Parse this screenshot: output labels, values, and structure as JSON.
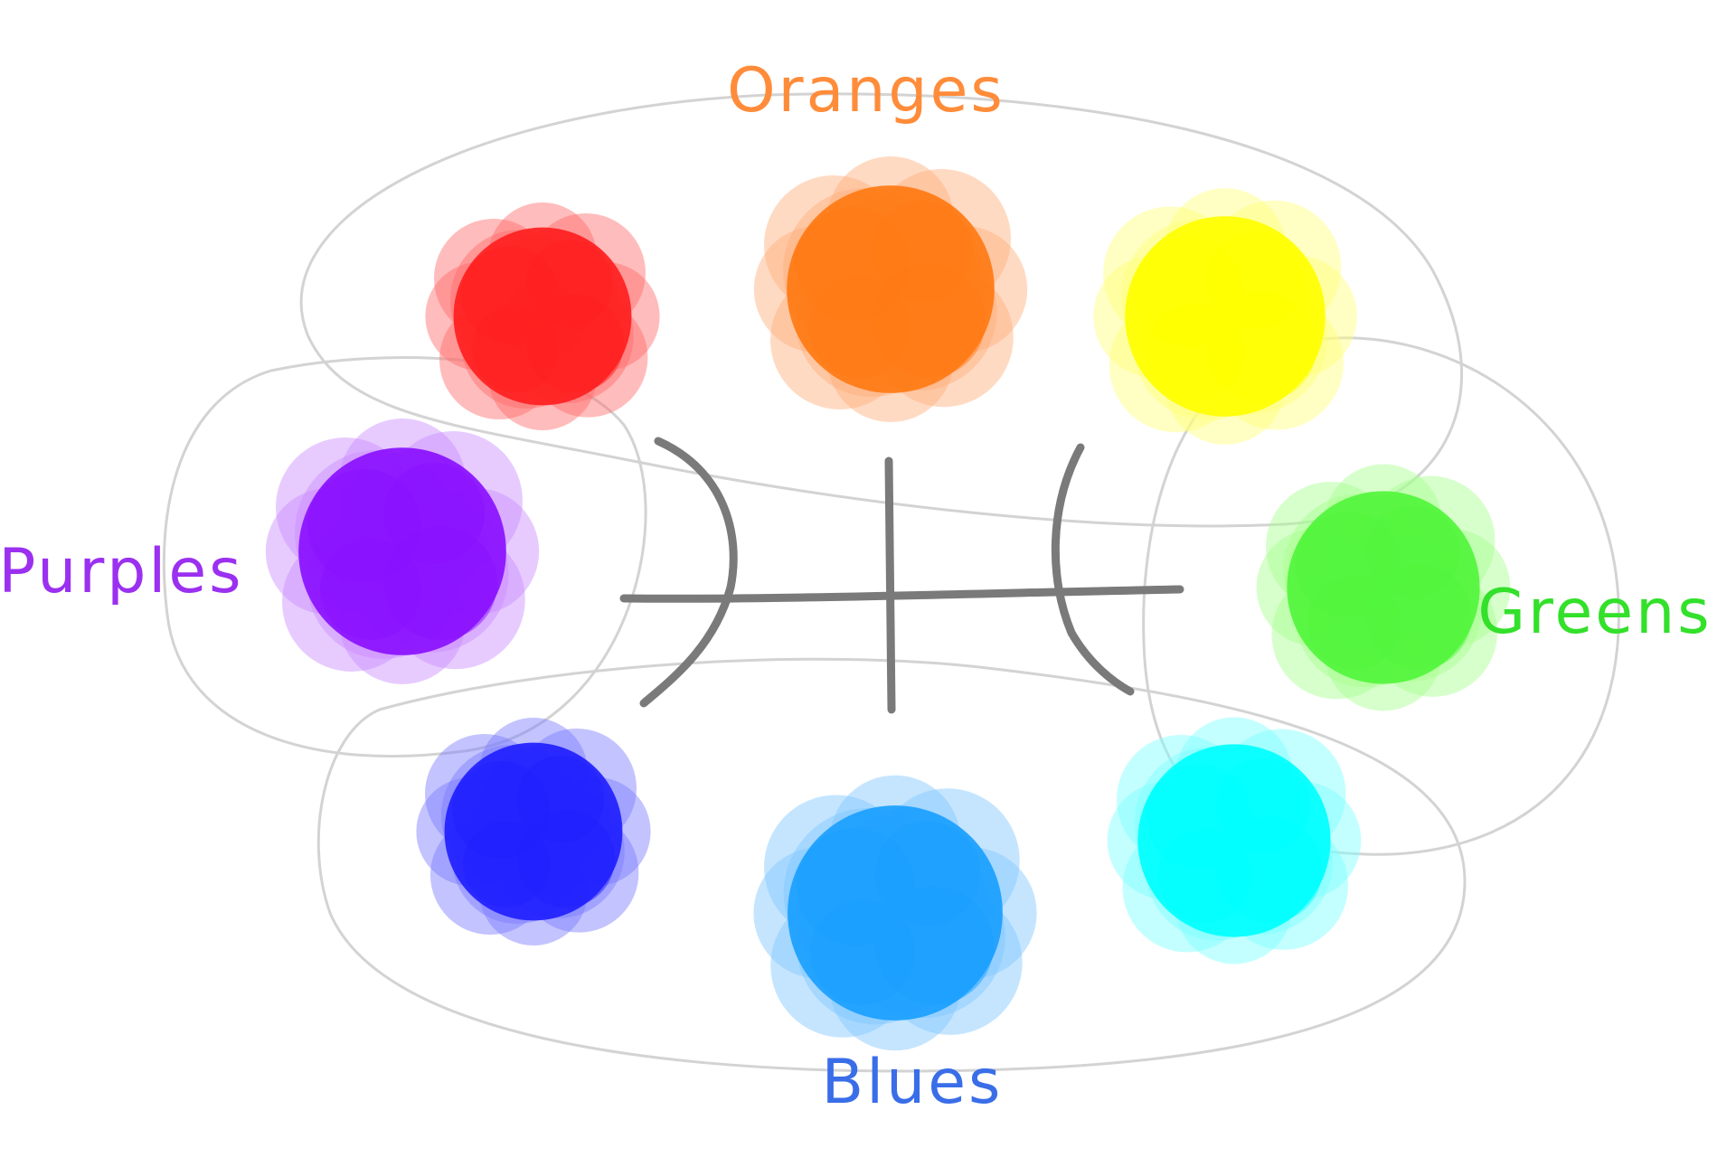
{
  "labels": {
    "oranges": "Oranges",
    "purples": "Purples",
    "greens": "Greens",
    "blues": "Blues"
  },
  "colors": {
    "background": "#ffffff",
    "outline": "#d3d3d3",
    "symbol": "#7a7a7a",
    "label_oranges": "#ff8c3a",
    "label_purples": "#9b30f0",
    "label_greens": "#33e02a",
    "label_blues": "#3a6ee8"
  },
  "swatches": [
    {
      "name": "red",
      "color": "#ff1f1f",
      "edge": "#ff6a6a"
    },
    {
      "name": "orange",
      "color": "#ff7a14",
      "edge": "#ffad7a"
    },
    {
      "name": "yellow",
      "color": "#ffff00",
      "edge": "#ffff7a"
    },
    {
      "name": "green",
      "color": "#52f53c",
      "edge": "#a6ff8f"
    },
    {
      "name": "cyan",
      "color": "#00ffff",
      "edge": "#7dffff"
    },
    {
      "name": "sky-blue",
      "color": "#1aa0ff",
      "edge": "#7ec6ff"
    },
    {
      "name": "blue",
      "color": "#2020ff",
      "edge": "#7a7aff"
    },
    {
      "name": "purple",
      "color": "#8a10ff",
      "edge": "#c98cff"
    }
  ]
}
